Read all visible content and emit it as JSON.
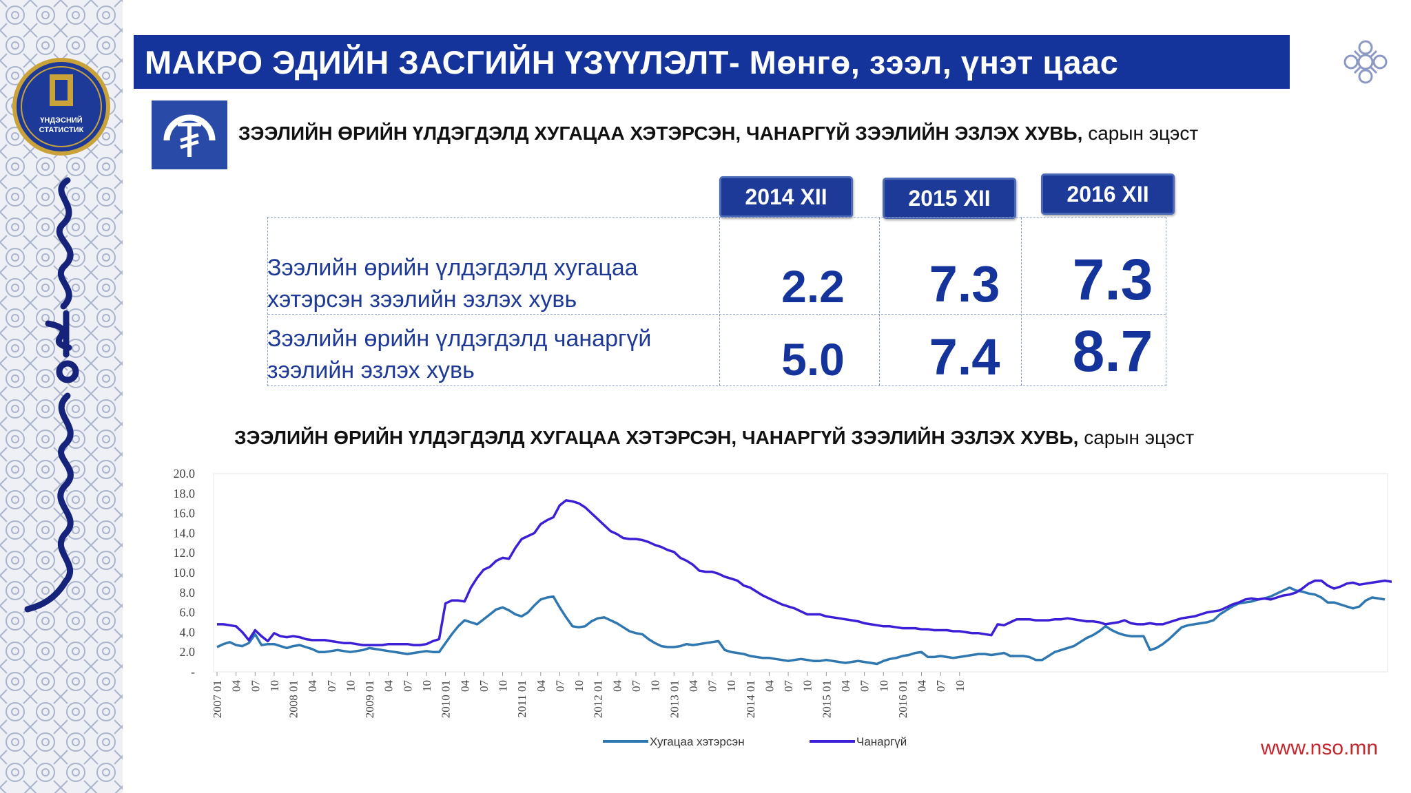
{
  "title": "МАКРО ЭДИЙН ЗАСГИЙН ҮЗҮҮЛЭЛТ- Мөнгө, зээл, үнэт цаас",
  "logo_text": [
    "ҮНДЭСНИЙ",
    "СТАТИСТИК"
  ],
  "table_subtitle": {
    "bold": "ЗЭЭЛИЙН ӨРИЙН ҮЛДЭГДЭЛД ХУГАЦАА ХЭТЭРСЭН, ЧАНАРГҮЙ ЗЭЭЛИЙН ЭЗЛЭХ ХУВЬ,",
    "normal": " сарын эцэст"
  },
  "table": {
    "columns": [
      "2014  XII",
      "2015  XII",
      "2016  XII"
    ],
    "rows": [
      {
        "label_line1": "Зээлийн  өрийн  үлдэгдэлд  хугацаа",
        "label_line2": "хэтэрсэн зээлийн эзлэх хувь",
        "values": [
          "2.2",
          "7.3",
          "7.3"
        ]
      },
      {
        "label_line1": "Зээлийн  өрийн  үлдэгдэлд  чанаргүй",
        "label_line2": "зээлийн эзлэх хувь",
        "values": [
          "5.0",
          "7.4",
          "8.7"
        ]
      }
    ]
  },
  "chart_subtitle": {
    "bold": "ЗЭЭЛИЙН ӨРИЙН ҮЛДЭГДЭЛД ХУГАЦАА ХЭТЭРСЭН, ЧАНАРГҮЙ ЗЭЭЛИЙН ЭЗЛЭХ ХУВЬ,",
    "normal": " сарын эцэст"
  },
  "chart_data": {
    "type": "line",
    "title": "",
    "xlabel": "",
    "ylabel": "",
    "ylim": [
      0,
      20
    ],
    "y_ticks": [
      "-",
      "2.0",
      "4.0",
      "6.0",
      "8.0",
      "10.0",
      "12.0",
      "14.0",
      "16.0",
      "18.0",
      "20.0"
    ],
    "x_tick_labels": [
      "2007 01",
      "04",
      "07",
      "10",
      "2008 01",
      "04",
      "07",
      "10",
      "2009 01",
      "04",
      "07",
      "10",
      "2010 01",
      "04",
      "07",
      "10",
      "2011 01",
      "04",
      "07",
      "10",
      "2012 01",
      "04",
      "07",
      "10",
      "2013 01",
      "04",
      "07",
      "10",
      "2014 01",
      "04",
      "07",
      "10",
      "2015 01",
      "04",
      "07",
      "10",
      "2016 01",
      "04",
      "07",
      "10"
    ],
    "x_range": [
      "2007 01",
      "2016 12"
    ],
    "grid": false,
    "legend_position": "bottom",
    "series": [
      {
        "name": "Хугацаа хэтэрсэн",
        "color": "#2e77b0",
        "values": [
          2.5,
          2.8,
          3.0,
          2.7,
          2.6,
          2.9,
          3.8,
          2.7,
          2.8,
          2.8,
          2.6,
          2.4,
          2.6,
          2.7,
          2.5,
          2.3,
          2.0,
          2.0,
          2.1,
          2.2,
          2.1,
          2.0,
          2.1,
          2.2,
          2.4,
          2.3,
          2.2,
          2.1,
          2.0,
          1.9,
          1.8,
          1.9,
          2.0,
          2.1,
          2.0,
          2.0,
          2.9,
          3.8,
          4.6,
          5.2,
          5.0,
          4.8,
          5.3,
          5.8,
          6.3,
          6.5,
          6.2,
          5.8,
          5.6,
          6.0,
          6.7,
          7.3,
          7.5,
          7.6,
          6.5,
          5.5,
          4.6,
          4.5,
          4.6,
          5.1,
          5.4,
          5.5,
          5.2,
          4.9,
          4.5,
          4.1,
          3.9,
          3.8,
          3.3,
          2.9,
          2.6,
          2.5,
          2.5,
          2.6,
          2.8,
          2.7,
          2.8,
          2.9,
          3.0,
          3.1,
          2.2,
          2.0,
          1.9,
          1.8,
          1.6,
          1.5,
          1.4,
          1.4,
          1.3,
          1.2,
          1.1,
          1.2,
          1.3,
          1.2,
          1.1,
          1.1,
          1.2,
          1.1,
          1.0,
          0.9,
          1.0,
          1.1,
          1.0,
          0.9,
          0.8,
          1.1,
          1.3,
          1.4,
          1.6,
          1.7,
          1.9,
          2.0,
          1.5,
          1.5,
          1.6,
          1.5,
          1.4,
          1.5,
          1.6,
          1.7,
          1.8,
          1.8,
          1.7,
          1.8,
          1.9,
          1.6,
          1.6,
          1.6,
          1.5,
          1.2,
          1.2,
          1.6,
          2.0,
          2.2,
          2.4,
          2.6,
          3.0,
          3.4,
          3.7,
          4.1,
          4.6,
          4.2,
          3.9,
          3.7,
          3.6,
          3.6,
          3.6,
          2.2,
          2.4,
          2.8,
          3.3,
          3.9,
          4.5,
          4.7,
          4.8,
          4.9,
          5.0,
          5.2,
          5.8,
          6.2,
          6.6,
          6.9,
          7.0,
          7.1,
          7.3,
          7.4,
          7.6,
          7.9,
          8.2,
          8.5,
          8.2,
          8.1,
          7.9,
          7.8,
          7.5,
          7.0,
          7.0,
          6.8,
          6.6,
          6.4,
          6.6,
          7.2,
          7.5,
          7.4,
          7.3
        ]
      },
      {
        "name": "Чанаргүй",
        "color": "#3b1fd6",
        "values": [
          4.8,
          4.8,
          4.7,
          4.6,
          4.0,
          3.2,
          4.2,
          3.6,
          3.1,
          3.9,
          3.6,
          3.5,
          3.6,
          3.5,
          3.3,
          3.2,
          3.2,
          3.2,
          3.1,
          3.0,
          2.9,
          2.9,
          2.8,
          2.7,
          2.7,
          2.7,
          2.7,
          2.8,
          2.8,
          2.8,
          2.8,
          2.7,
          2.7,
          2.8,
          3.1,
          3.3,
          6.9,
          7.2,
          7.2,
          7.1,
          8.5,
          9.5,
          10.3,
          10.6,
          11.2,
          11.5,
          11.4,
          12.5,
          13.4,
          13.7,
          14.0,
          14.9,
          15.3,
          15.6,
          16.8,
          17.3,
          17.2,
          17.0,
          16.6,
          16.0,
          15.4,
          14.8,
          14.2,
          13.9,
          13.5,
          13.4,
          13.4,
          13.3,
          13.1,
          12.8,
          12.6,
          12.3,
          12.1,
          11.5,
          11.2,
          10.8,
          10.2,
          10.1,
          10.1,
          9.9,
          9.6,
          9.4,
          9.2,
          8.7,
          8.5,
          8.1,
          7.7,
          7.4,
          7.1,
          6.8,
          6.6,
          6.4,
          6.1,
          5.8,
          5.8,
          5.8,
          5.6,
          5.5,
          5.4,
          5.3,
          5.2,
          5.1,
          4.9,
          4.8,
          4.7,
          4.6,
          4.6,
          4.5,
          4.4,
          4.4,
          4.4,
          4.3,
          4.3,
          4.2,
          4.2,
          4.2,
          4.1,
          4.1,
          4.0,
          3.9,
          3.9,
          3.8,
          3.7,
          4.8,
          4.7,
          5.0,
          5.3,
          5.3,
          5.3,
          5.2,
          5.2,
          5.2,
          5.3,
          5.3,
          5.4,
          5.3,
          5.2,
          5.1,
          5.1,
          5.0,
          4.8,
          4.9,
          5.0,
          5.2,
          4.9,
          4.8,
          4.8,
          4.9,
          4.8,
          4.8,
          5.0,
          5.2,
          5.4,
          5.5,
          5.6,
          5.8,
          6.0,
          6.1,
          6.2,
          6.5,
          6.8,
          7.0,
          7.3,
          7.4,
          7.3,
          7.4,
          7.3,
          7.5,
          7.7,
          7.8,
          8.0,
          8.4,
          8.9,
          9.2,
          9.2,
          8.7,
          8.4,
          8.6,
          8.9,
          9.0,
          8.8,
          8.9,
          9.0,
          9.1,
          9.2,
          9.1,
          8.9,
          8.7
        ]
      }
    ]
  },
  "website": "www.nso.mn"
}
